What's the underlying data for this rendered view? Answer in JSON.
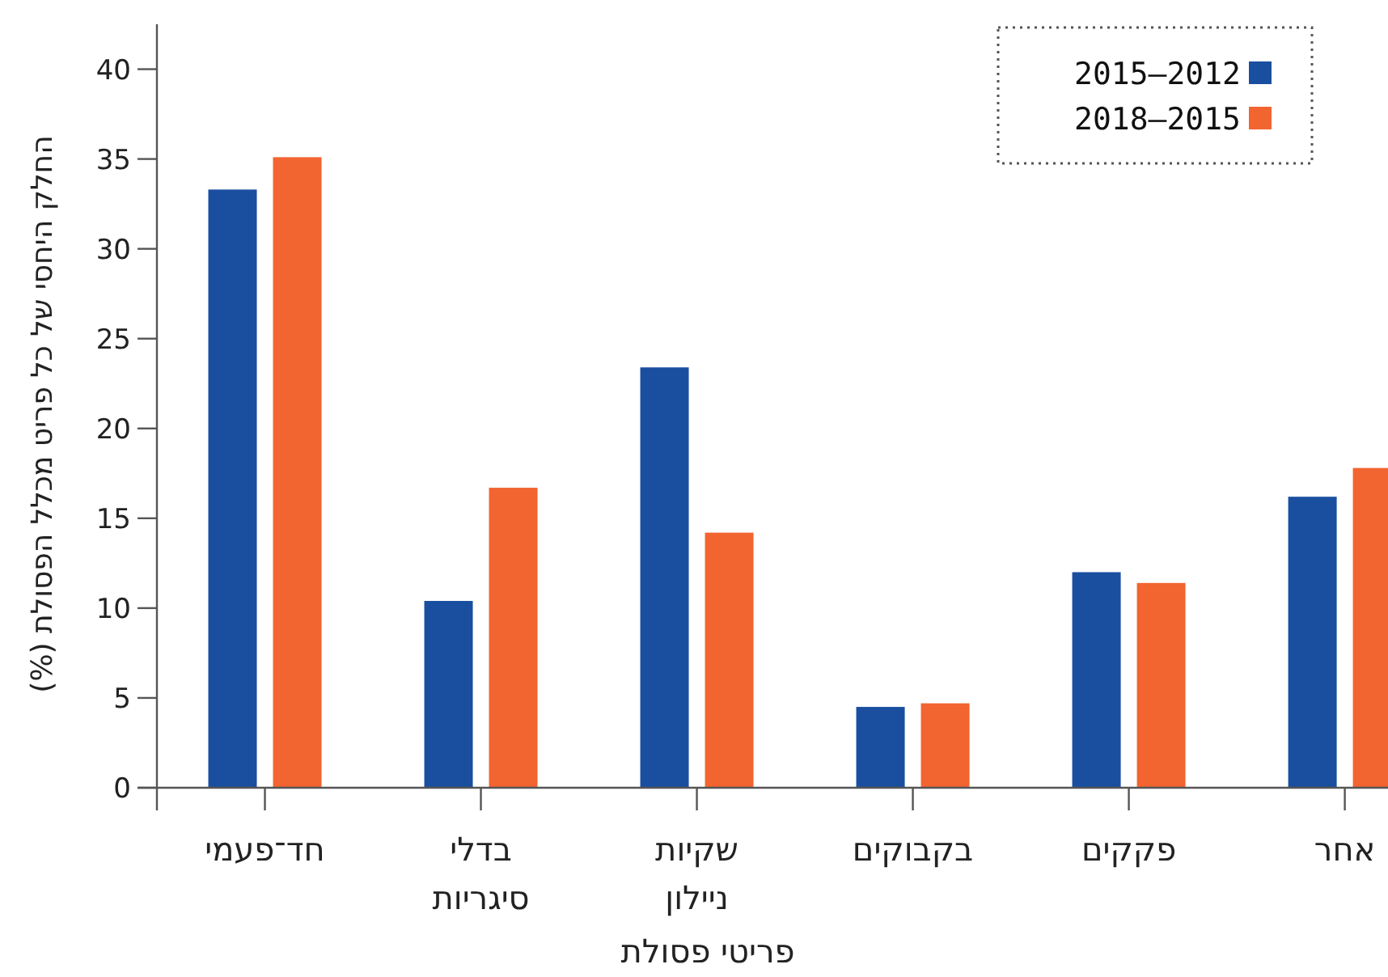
{
  "chart_data": {
    "type": "bar",
    "xlabel": "פריטי פסולת",
    "ylabel": "החלק היחסי של כל פריט מכלל הפסולת (%)",
    "categories": [
      "חד־פעמי",
      "בדלי\nסיגריות",
      "שקיות\nניילון",
      "בקבוקים",
      "פקקים",
      "אחר"
    ],
    "series": [
      {
        "name": "2015–2012",
        "color": "#1a4fa0",
        "values": [
          33.3,
          10.4,
          23.4,
          4.5,
          12.0,
          16.2
        ]
      },
      {
        "name": "2018–2015",
        "color": "#f26430",
        "values": [
          35.1,
          16.7,
          14.2,
          4.7,
          11.4,
          17.8
        ]
      }
    ],
    "ylim": [
      0,
      42.5
    ],
    "yticks": [
      0,
      5,
      10,
      15,
      20,
      25,
      30,
      35,
      40
    ],
    "legend": "top right"
  }
}
